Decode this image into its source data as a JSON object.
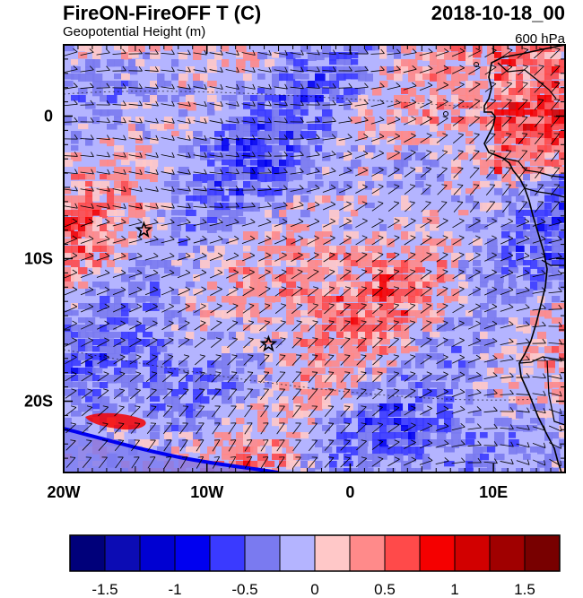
{
  "title": "FireON-FireOFF T (C)",
  "subtitle": "Geopotential Height (m)",
  "date": "2018-10-18_00",
  "level": "600 hPa",
  "map": {
    "lon_range": [
      -20,
      15
    ],
    "lat_range": [
      -25,
      5
    ],
    "xticks": [
      {
        "lon": -20,
        "label": "20W"
      },
      {
        "lon": -10,
        "label": "10W"
      },
      {
        "lon": 0,
        "label": "0"
      },
      {
        "lon": 10,
        "label": "10E"
      }
    ],
    "yticks": [
      {
        "lat": 0,
        "label": "0"
      },
      {
        "lat": -10,
        "label": "10S"
      },
      {
        "lat": -20,
        "label": "20S"
      }
    ],
    "markers": [
      {
        "name": "star",
        "lon": -14.4,
        "lat": -8.0
      },
      {
        "name": "star",
        "lon": -5.7,
        "lat": -16.0
      }
    ]
  },
  "colorbar": {
    "colors": [
      "#00007a",
      "#0c0cb4",
      "#0000d2",
      "#0000f0",
      "#3a3aff",
      "#7a7af0",
      "#b4b4ff",
      "#ffc8c8",
      "#ff8a8a",
      "#ff4a4a",
      "#f50000",
      "#d20000",
      "#a00000",
      "#780000"
    ],
    "labels": [
      "-1.5",
      "-1",
      "-0.5",
      "0",
      "0.5",
      "1",
      "1.5"
    ]
  }
}
